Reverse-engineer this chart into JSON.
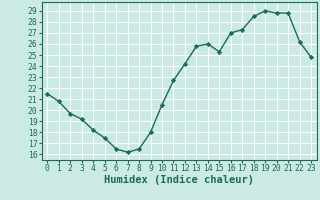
{
  "x": [
    0,
    1,
    2,
    3,
    4,
    5,
    6,
    7,
    8,
    9,
    10,
    11,
    12,
    13,
    14,
    15,
    16,
    17,
    18,
    19,
    20,
    21,
    22,
    23
  ],
  "y": [
    21.5,
    20.8,
    19.7,
    19.2,
    18.2,
    17.5,
    16.5,
    16.2,
    16.5,
    18.0,
    20.5,
    22.7,
    24.2,
    25.8,
    26.0,
    25.3,
    27.0,
    27.3,
    28.5,
    29.0,
    28.8,
    28.8,
    26.2,
    24.8
  ],
  "line_color": "#1a6b5a",
  "marker": "D",
  "markersize": 2.2,
  "linewidth": 1.0,
  "xlabel": "Humidex (Indice chaleur)",
  "ylim": [
    15.5,
    29.8
  ],
  "xlim": [
    -0.5,
    23.5
  ],
  "yticks": [
    16,
    17,
    18,
    19,
    20,
    21,
    22,
    23,
    24,
    25,
    26,
    27,
    28,
    29
  ],
  "xticks": [
    0,
    1,
    2,
    3,
    4,
    5,
    6,
    7,
    8,
    9,
    10,
    11,
    12,
    13,
    14,
    15,
    16,
    17,
    18,
    19,
    20,
    21,
    22,
    23
  ],
  "bg_color": "#cceae4",
  "grid_color": "#ffffff",
  "tick_label_fontsize": 5.8,
  "xlabel_fontsize": 7.5,
  "xlabel_fontweight": "bold",
  "spine_color": "#1a6b5a"
}
